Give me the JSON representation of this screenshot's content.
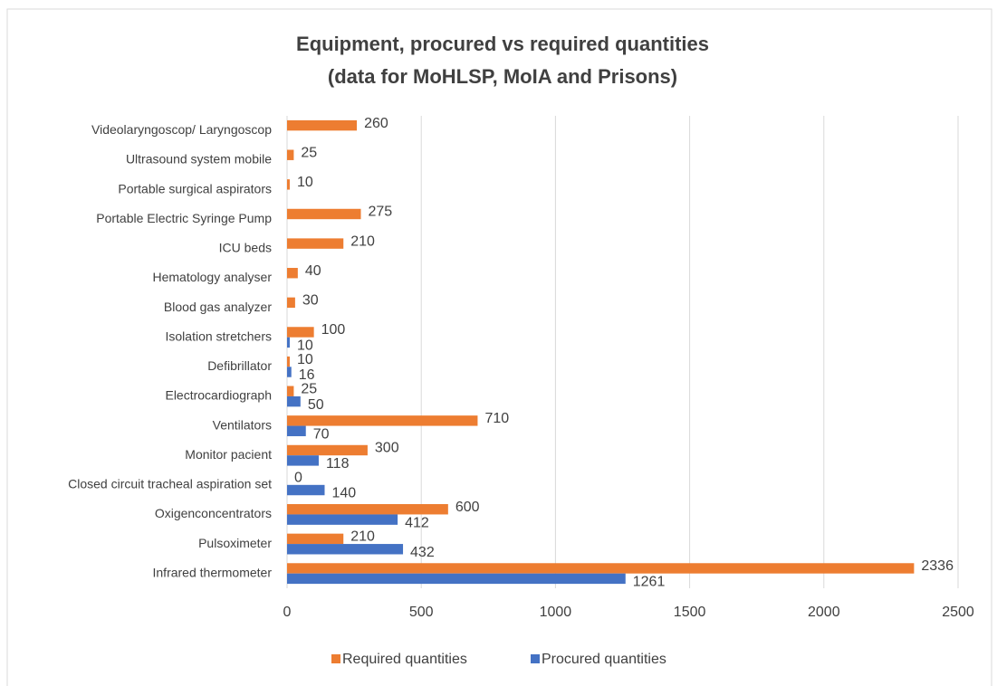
{
  "chart_data": {
    "type": "hbar",
    "title": [
      "Equipment, procured vs required quantities",
      "(data for MoHLSP, MoIA and Prisons)"
    ],
    "categories": [
      "Infrared thermometer",
      "Pulsoximeter",
      "Oxigenconcentrators",
      "Closed circuit tracheal aspiration set",
      "Monitor pacient",
      "Ventilators",
      "Electrocardiograph",
      "Defibrillator",
      "Isolation stretchers",
      "Blood gas analyzer",
      "Hematology analyser",
      "ICU beds",
      "Portable Electric Syringe Pump",
      "Portable surgical aspirators",
      "Ultrasound system mobile",
      "Videolaryngoscop/ Laryngoscop"
    ],
    "series": [
      {
        "name": "Required quantities",
        "color": "#ED7D31",
        "values": [
          2336,
          210,
          600,
          0,
          300,
          710,
          25,
          10,
          100,
          30,
          40,
          210,
          275,
          10,
          25,
          260
        ]
      },
      {
        "name": "Procured quantities",
        "color": "#4472C4",
        "values": [
          1261,
          432,
          412,
          140,
          118,
          70,
          50,
          16,
          10,
          null,
          null,
          null,
          null,
          null,
          null,
          null
        ]
      }
    ],
    "xlim": [
      0,
      2500
    ],
    "xticks": [
      0,
      500,
      1000,
      1500,
      2000,
      2500
    ],
    "grid": true,
    "legend": "bottom"
  }
}
